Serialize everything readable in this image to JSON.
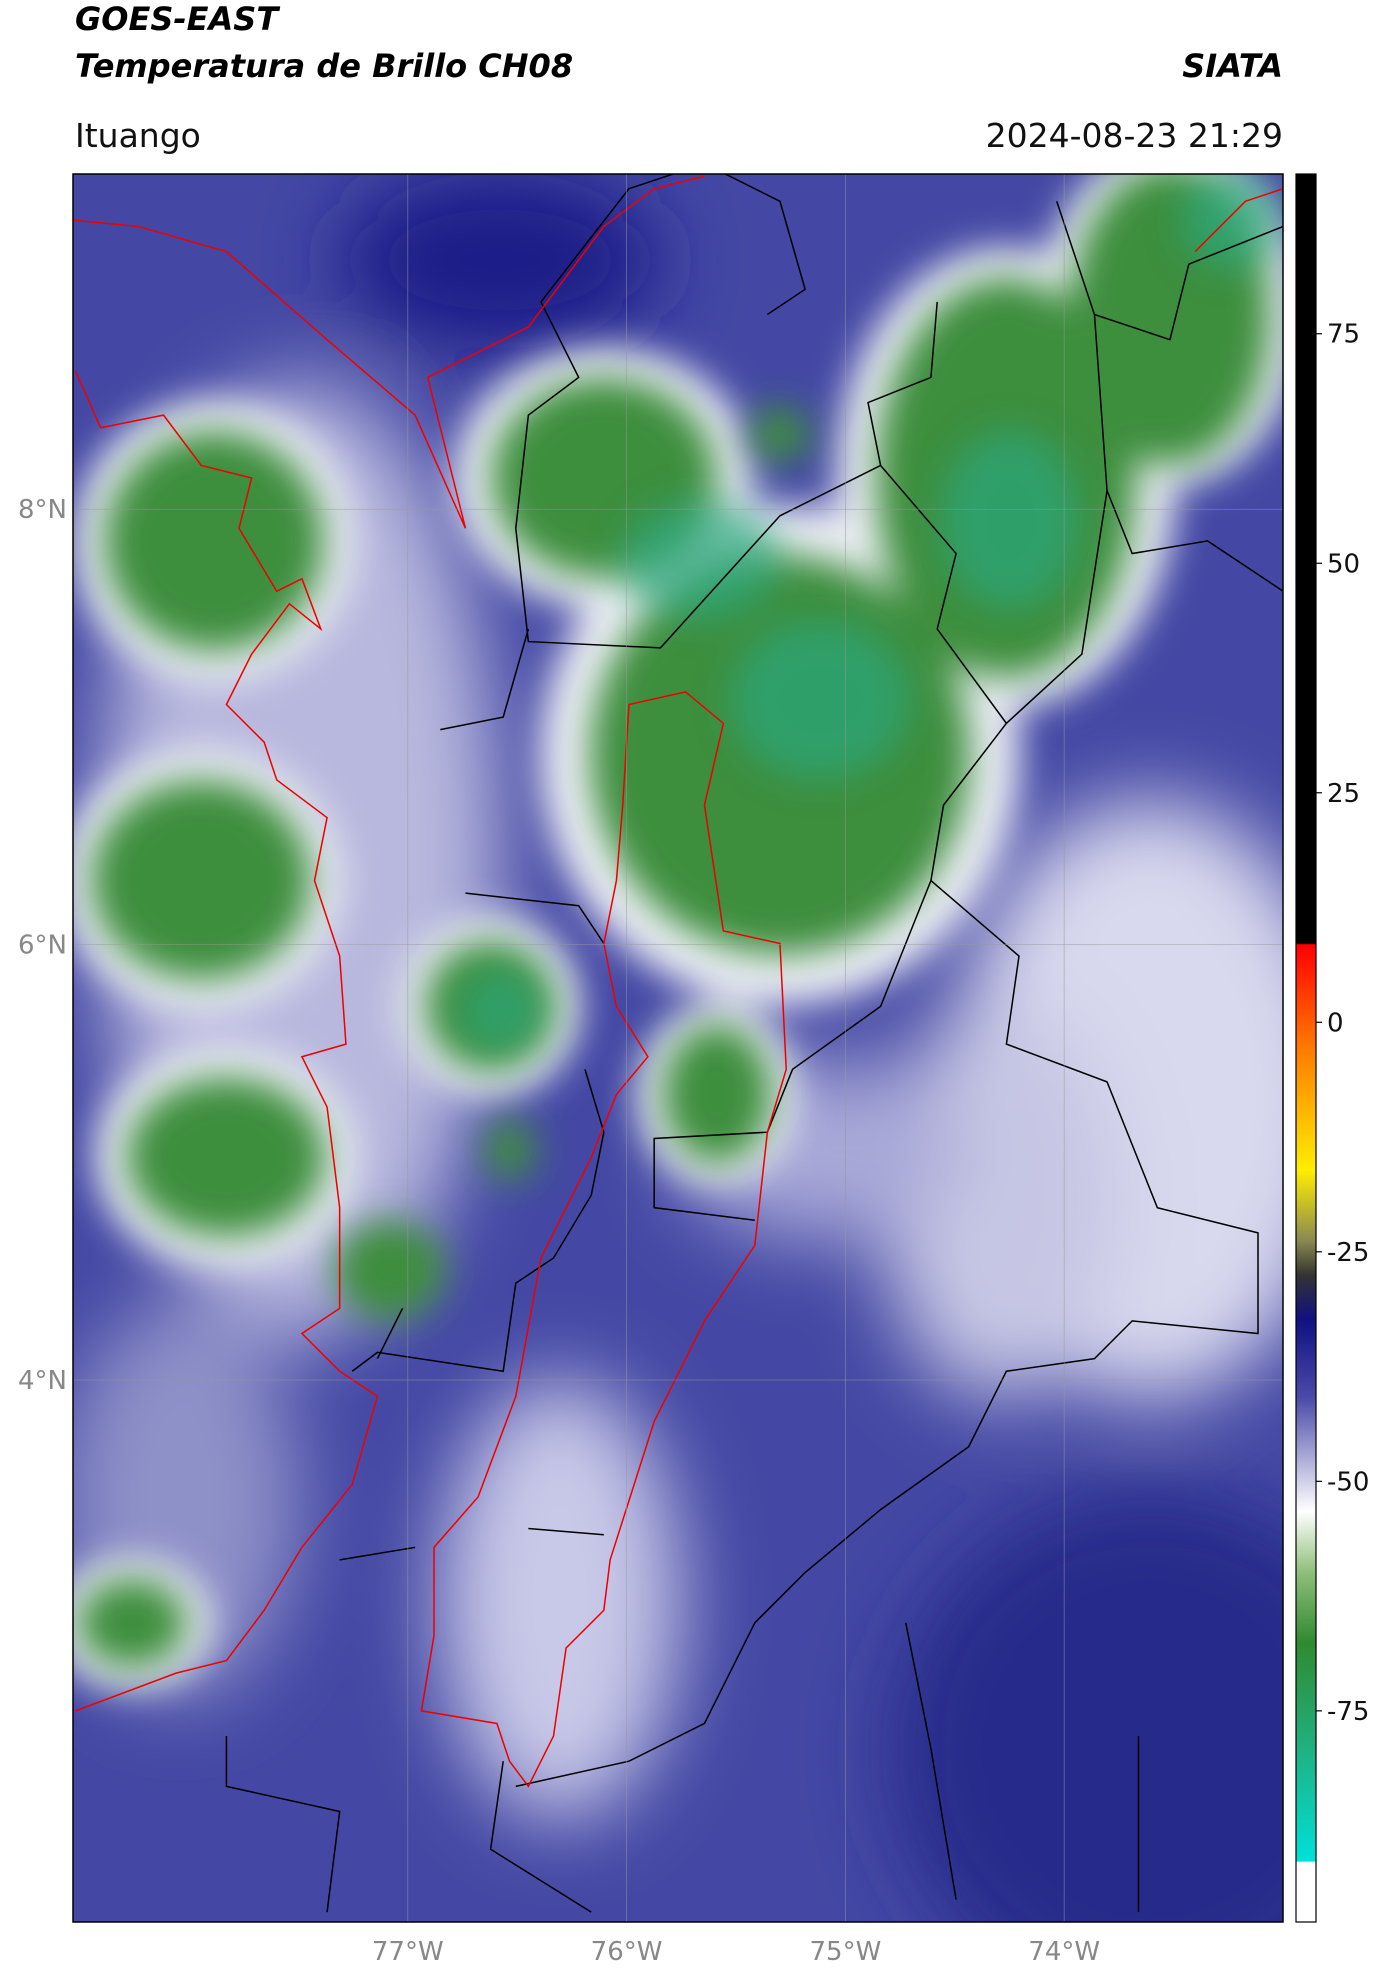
{
  "header": {
    "title": "GOES-EAST",
    "subtitle": "Temperatura de Brillo CH08",
    "source": "SIATA",
    "location": "Ituango",
    "datetime": "2024-08-23 21:29"
  },
  "map": {
    "lat_ticks": [
      {
        "value": 8,
        "label": "8°N"
      },
      {
        "value": 6,
        "label": "6°N"
      },
      {
        "value": 4,
        "label": "4°N"
      }
    ],
    "lon_ticks": [
      {
        "value": -77,
        "label": "77°W"
      },
      {
        "value": -76,
        "label": "76°W"
      },
      {
        "value": -75,
        "label": "75°W"
      },
      {
        "value": -74,
        "label": "74°W"
      }
    ]
  },
  "colorbar": {
    "ticks": [
      75,
      50,
      25,
      0,
      -25,
      -50,
      -75
    ]
  }
}
